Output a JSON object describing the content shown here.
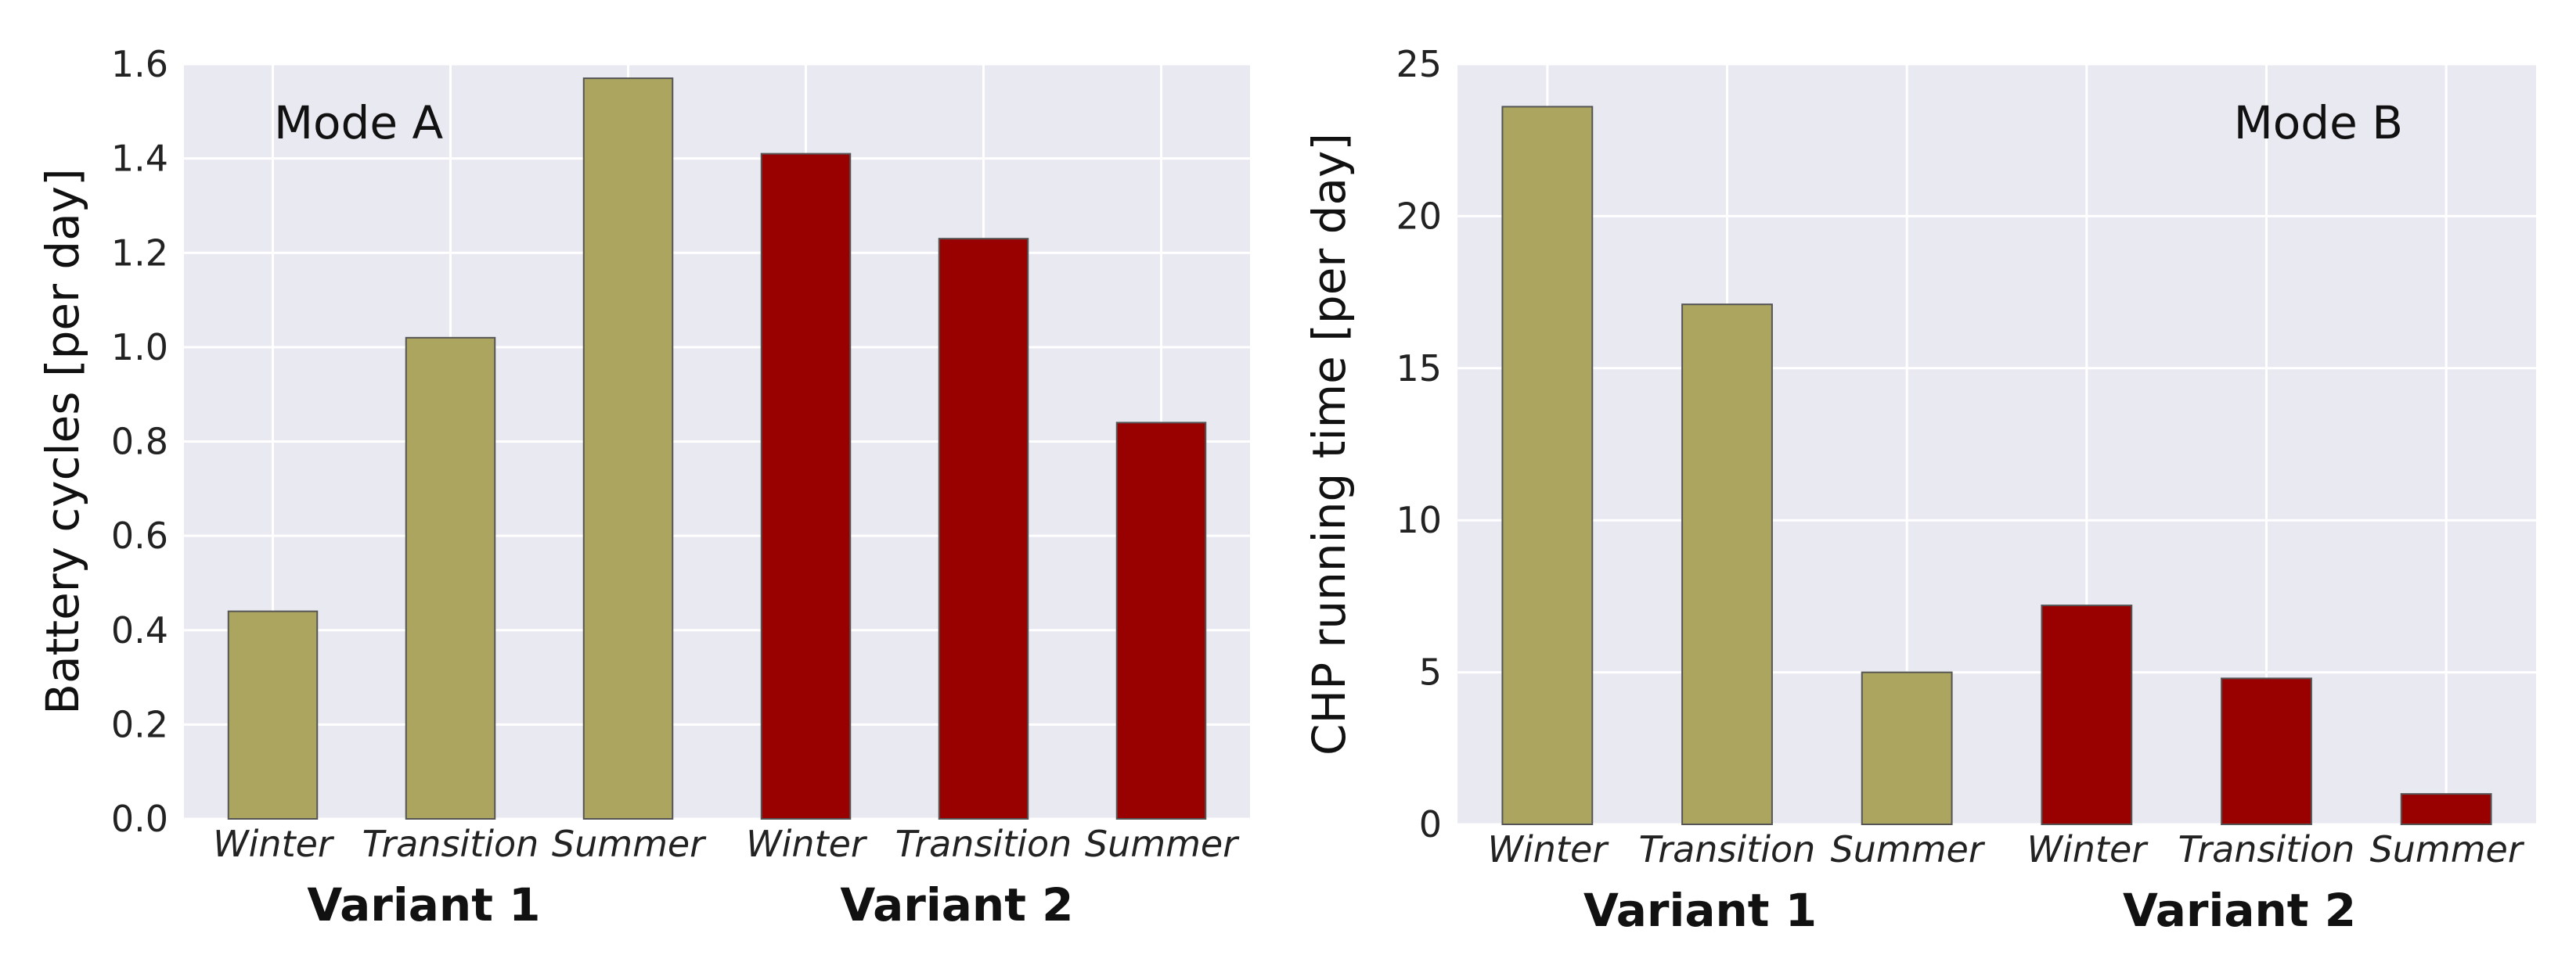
{
  "chart_data": [
    {
      "type": "bar",
      "annotation": "Mode A",
      "ylabel": "Battery cycles  [per day]",
      "ylim": [
        0,
        1.6
      ],
      "yticks": [
        "0.0",
        "0.2",
        "0.4",
        "0.6",
        "0.8",
        "1.0",
        "1.2",
        "1.4",
        "1.6"
      ],
      "categories": [
        "Winter",
        "Transition",
        "Summer",
        "Winter",
        "Transition",
        "Summer"
      ],
      "groups": [
        "Variant 1",
        "Variant 2"
      ],
      "values": [
        0.44,
        1.02,
        1.57,
        1.41,
        1.23,
        0.84
      ],
      "colors": [
        "#aba55f",
        "#aba55f",
        "#aba55f",
        "#990000",
        "#990000",
        "#990000"
      ],
      "grid": true
    },
    {
      "type": "bar",
      "annotation": "Mode B",
      "ylabel": "CHP running time  [per day]",
      "ylim": [
        0,
        25
      ],
      "yticks": [
        "0",
        "5",
        "10",
        "15",
        "20",
        "25"
      ],
      "categories": [
        "Winter",
        "Transition",
        "Summer",
        "Winter",
        "Transition",
        "Summer"
      ],
      "groups": [
        "Variant 1",
        "Variant 2"
      ],
      "values": [
        23.6,
        17.1,
        5.0,
        7.2,
        4.8,
        1.0
      ],
      "colors": [
        "#aba55f",
        "#aba55f",
        "#aba55f",
        "#990000",
        "#990000",
        "#990000"
      ],
      "grid": true
    }
  ]
}
